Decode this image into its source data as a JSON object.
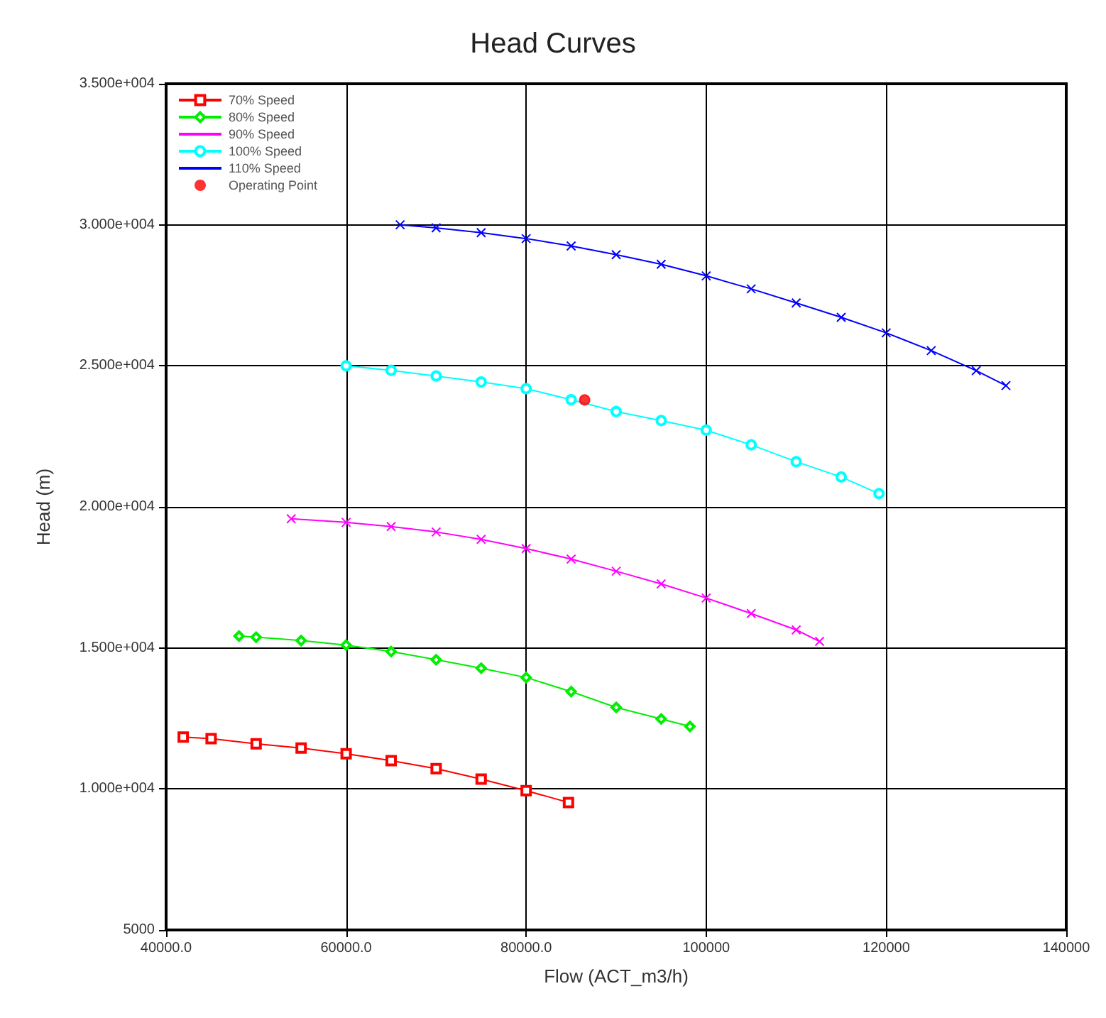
{
  "chart_data": {
    "type": "line",
    "title": "Head Curves",
    "xlabel": "Flow (ACT_m3/h)",
    "ylabel": "Head (m)",
    "xlim": [
      40000,
      140000
    ],
    "ylim": [
      5000,
      35000
    ],
    "xticks": [
      {
        "value": 40000,
        "label": "40000.0"
      },
      {
        "value": 60000,
        "label": "60000.0"
      },
      {
        "value": 80000,
        "label": "80000.0"
      },
      100000,
      120000,
      140000
    ],
    "yticks": [
      5000,
      {
        "value": 10000,
        "label": "1.000e+004"
      },
      {
        "value": 15000,
        "label": "1.500e+004"
      },
      {
        "value": 20000,
        "label": "2.000e+004"
      },
      {
        "value": 25000,
        "label": "2.500e+004"
      },
      {
        "value": 30000,
        "label": "3.000e+004"
      },
      {
        "value": 35000,
        "label": "3.500e+004"
      }
    ],
    "grid": true,
    "legend": "top left",
    "line_style": "solid",
    "series": [
      {
        "name": "70% Speed",
        "color": "#ff0000",
        "marker": "square",
        "x": [
          41900,
          45000,
          50000,
          55000,
          60000,
          65000,
          70000,
          75000,
          80000,
          84700
        ],
        "values": [
          11840,
          11780,
          11600,
          11450,
          11250,
          11000,
          10720,
          10350,
          9940,
          9520
        ]
      },
      {
        "name": "80% Speed",
        "color": "#00ee00",
        "marker": "diamond",
        "x": [
          48100,
          50000,
          55000,
          60000,
          65000,
          70000,
          75000,
          80000,
          85000,
          90000,
          95000,
          98200
        ],
        "values": [
          15420,
          15380,
          15260,
          15100,
          14870,
          14580,
          14280,
          13950,
          13450,
          12890,
          12480,
          12215
        ]
      },
      {
        "name": "90% Speed",
        "color": "#ff00ff",
        "marker": "cross",
        "x": [
          53900,
          60000,
          65000,
          70000,
          75000,
          80000,
          85000,
          90000,
          95000,
          100000,
          105000,
          110000,
          112600
        ],
        "values": [
          19580,
          19450,
          19300,
          19110,
          18850,
          18520,
          18150,
          17720,
          17270,
          16770,
          16220,
          15640,
          15230
        ]
      },
      {
        "name": "100% Speed",
        "color": "#00ffff",
        "marker": "circle",
        "x": [
          60000,
          65000,
          70000,
          75000,
          80000,
          85000,
          90000,
          95000,
          100000,
          105000,
          110000,
          115000,
          119200
        ],
        "values": [
          25000,
          24840,
          24640,
          24430,
          24190,
          23800,
          23380,
          23060,
          22720,
          22200,
          21600,
          21060,
          20470
        ]
      },
      {
        "name": "110% Speed",
        "color": "#0000ff",
        "marker": "cross",
        "x": [
          66000,
          70000,
          75000,
          80000,
          85000,
          90000,
          95000,
          100000,
          105000,
          110000,
          115000,
          120000,
          125000,
          130000,
          133300
        ],
        "values": [
          30000,
          29890,
          29720,
          29510,
          29250,
          28940,
          28600,
          28190,
          27730,
          27230,
          26720,
          26170,
          25540,
          24830,
          24300
        ]
      },
      {
        "name": "Operating Point",
        "type": "scatter",
        "color": "#ff0000",
        "marker": "circle",
        "x": [
          86500
        ],
        "values": [
          23790
        ]
      }
    ]
  }
}
